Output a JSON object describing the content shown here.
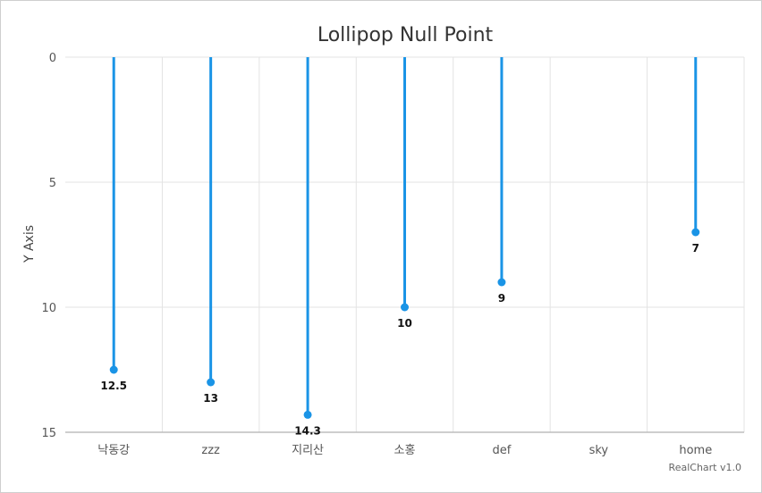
{
  "chart_data": {
    "type": "lollipop",
    "title": "Lollipop Null Point",
    "ylabel": "Y Axis",
    "y_reversed": true,
    "ylim": [
      0,
      15
    ],
    "yticks": [
      0,
      5,
      10,
      15
    ],
    "categories": [
      "낙동강",
      "zzz",
      "지리산",
      "소홍",
      "def",
      "sky",
      "home"
    ],
    "values": [
      12.5,
      13,
      14.3,
      10,
      9,
      null,
      7
    ],
    "data_labels": [
      "12.5",
      "13",
      "14.3",
      "10",
      "9",
      "",
      "7"
    ],
    "series_color": "#1a94e6",
    "grid": true
  },
  "credit": "RealChart v1.0"
}
